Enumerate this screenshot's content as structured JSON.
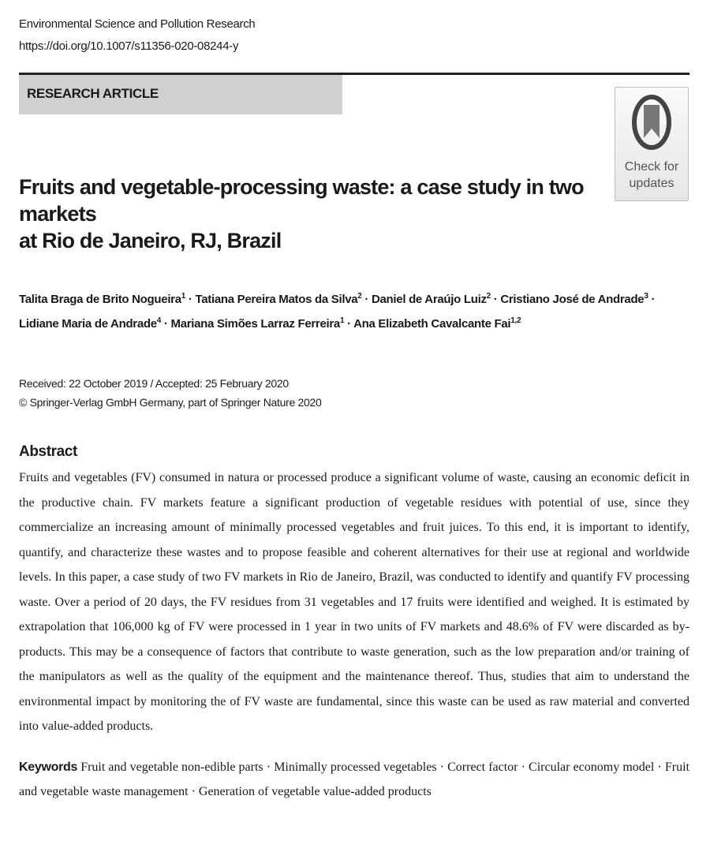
{
  "journal": "Environmental Science and Pollution Research",
  "doi": "https://doi.org/10.1007/s11356-020-08244-y",
  "article_type": "RESEARCH ARTICLE",
  "check_updates": {
    "line1": "Check for",
    "line2": "updates"
  },
  "title": {
    "line1": "Fruits and vegetable-processing waste: a case study in two markets",
    "line2": "at Rio de Janeiro, RJ, Brazil"
  },
  "authors": [
    {
      "name": "Talita Braga de Brito Nogueira",
      "aff": "1"
    },
    {
      "name": "Tatiana Pereira Matos da Silva",
      "aff": "2"
    },
    {
      "name": "Daniel de Araújo Luiz",
      "aff": "2"
    },
    {
      "name": "Cristiano José de Andrade",
      "aff": "3"
    },
    {
      "name": "Lidiane Maria de Andrade",
      "aff": "4"
    },
    {
      "name": "Mariana Simões Larraz Ferreira",
      "aff": "1"
    },
    {
      "name": "Ana Elizabeth Cavalcante Fai",
      "aff": "1,2"
    }
  ],
  "dates": "Received: 22 October 2019 / Accepted: 25 February 2020",
  "copyright": "© Springer-Verlag GmbH Germany, part of Springer Nature 2020",
  "abstract_heading": "Abstract",
  "abstract_lines": [
    "Fruits and vegetables (FV) consumed in natura or processed produce a significant volume of waste, causing an economic deficit",
    "in the productive chain. FV markets feature a significant production of vegetable residues with potential of use, since they",
    "commercialize an increasing amount of minimally processed vegetables and fruit juices. To this end, it is important to identify,",
    "quantify, and characterize these wastes and to propose feasible and coherent alternatives for their use at regional and worldwide",
    "levels. In this paper, a case study of two FV markets in Rio de Janeiro, Brazil, was conducted to identify and quantify FV",
    "processing waste. Over a period of 20 days, the FV residues from 31 vegetables and 17 fruits were identified and weighed. It is",
    "estimated by extrapolation that 106,000 kg of FV were processed in 1 year in two units of FV markets and 48.6% of FV were",
    "discarded as by-products. This may be a consequence of factors that contribute to waste generation, such as the low preparation",
    "and/or training of the manipulators as well as the quality of the equipment and the maintenance thereof. Thus, studies that aim to",
    "understand the environmental impact by monitoring the of FV waste are fundamental, since this waste can be used as raw",
    "material and converted into value-added products."
  ],
  "keywords_label": "Keywords",
  "keywords_lines": [
    "Fruit and vegetable non-edible parts · Minimally processed vegetables · Correct factor · Circular economy model · Fruit",
    "and vegetable waste management · Generation of vegetable value-added products"
  ]
}
